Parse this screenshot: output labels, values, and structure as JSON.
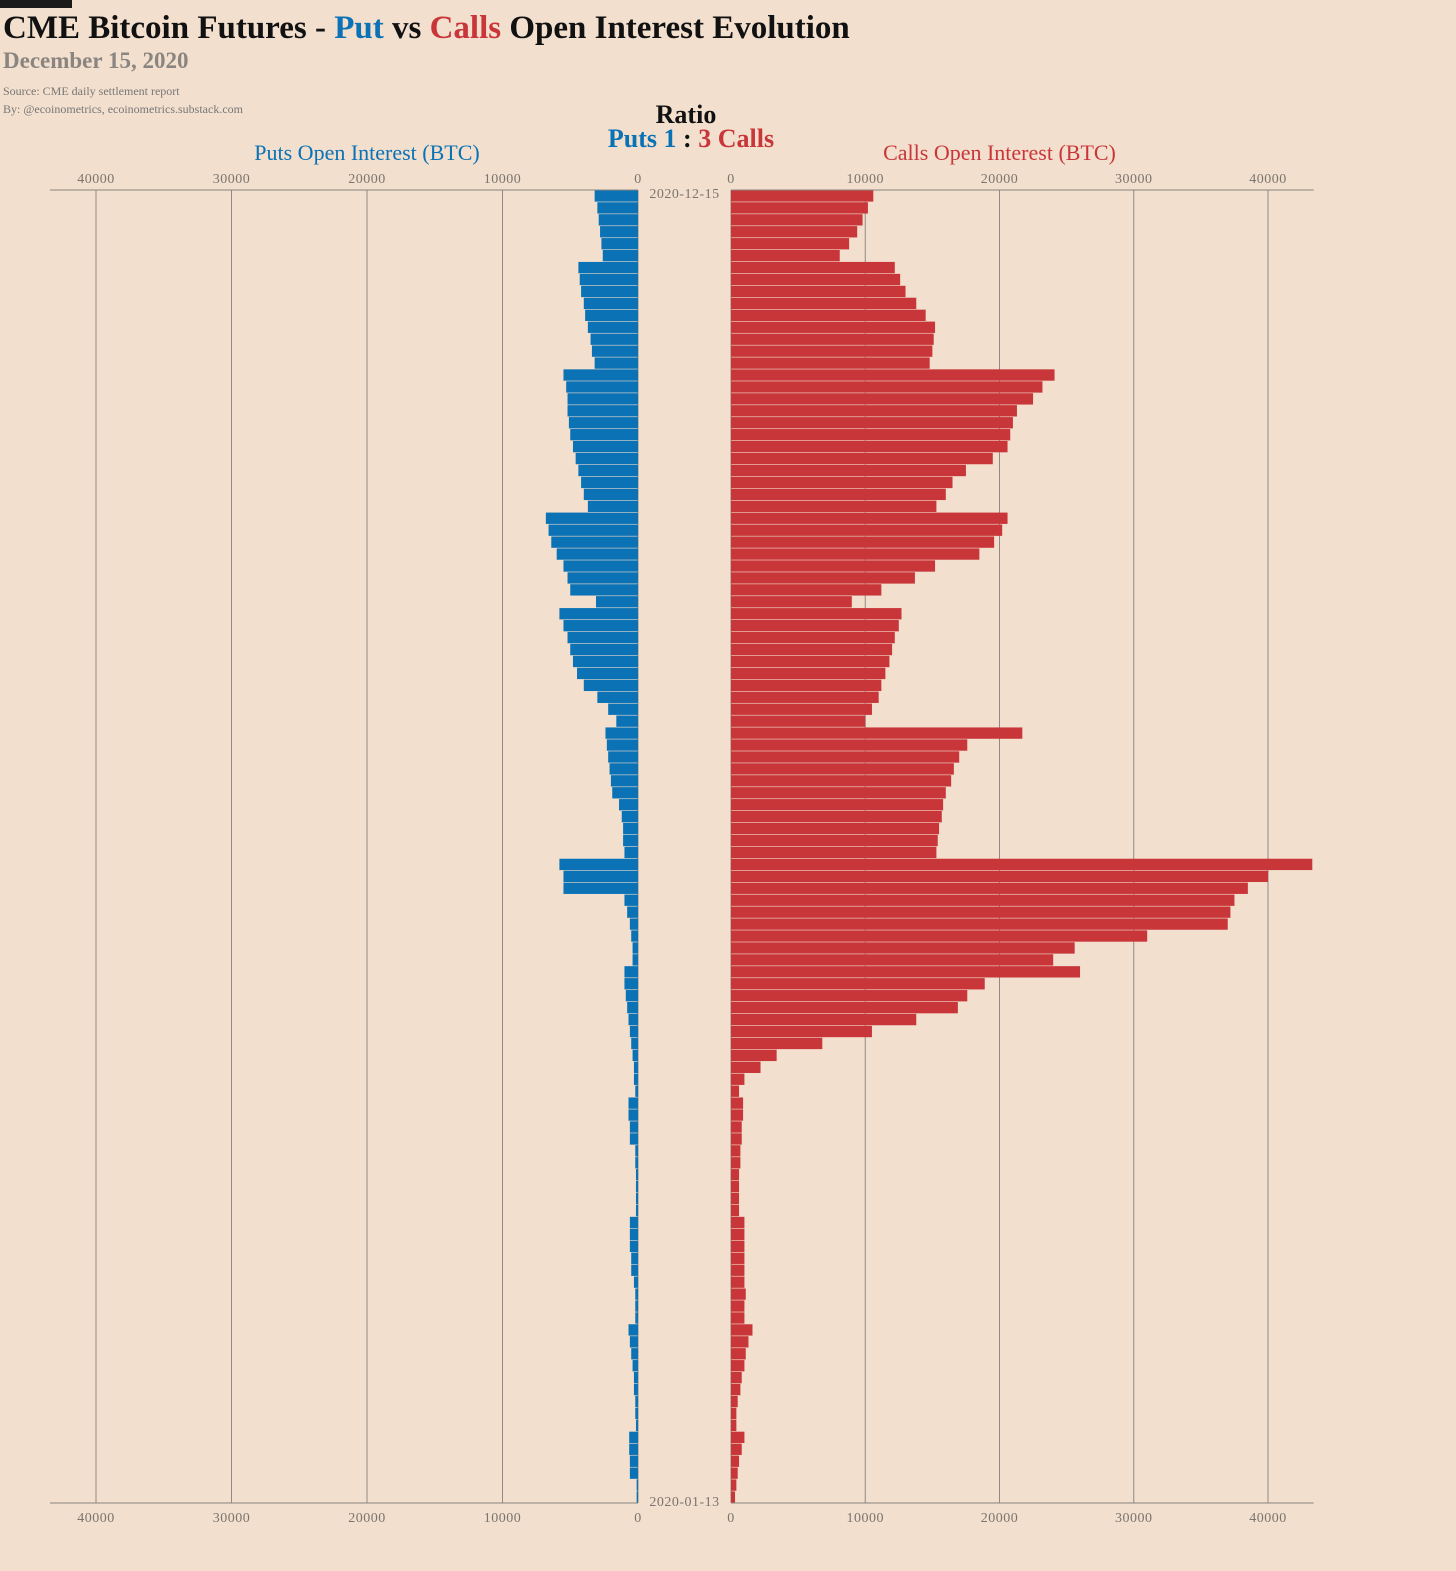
{
  "chart_data": {
    "type": "butterfly-bar",
    "title_parts": [
      {
        "text": "CME Bitcoin Futures -",
        "color": "#111111"
      },
      {
        "text": "Put",
        "color": "#0a72b5"
      },
      {
        "text": "vs",
        "color": "#111111"
      },
      {
        "text": "Calls",
        "color": "#c9363a"
      },
      {
        "text": "Open Interest Evolution",
        "color": "#111111"
      }
    ],
    "subtitle": "December 15, 2020",
    "source": "Source: CME daily settlement report",
    "byline": "By: @ecoinometrics, ecoinometrics.substack.com",
    "ratio_title": "Ratio",
    "ratio_parts": [
      {
        "text": "Puts 1",
        "color": "#0a72b5"
      },
      {
        "text": ":",
        "color": "#111111"
      },
      {
        "text": "3 Calls",
        "color": "#c9363a"
      }
    ],
    "categories": [
      "2020-12-15",
      null,
      null,
      null,
      null,
      null,
      null,
      null,
      null,
      null,
      null,
      null,
      null,
      null,
      null,
      null,
      null,
      null,
      null,
      null,
      null,
      null,
      null,
      null,
      null,
      null,
      null,
      null,
      null,
      null,
      null,
      null,
      null,
      null,
      null,
      null,
      null,
      null,
      null,
      null,
      null,
      null,
      null,
      null,
      null,
      null,
      null,
      null,
      null,
      null,
      null,
      null,
      null,
      null,
      null,
      null,
      null,
      null,
      null,
      null,
      null,
      null,
      null,
      null,
      null,
      null,
      null,
      null,
      null,
      null,
      null,
      null,
      null,
      null,
      null,
      null,
      null,
      null,
      null,
      null,
      null,
      null,
      null,
      null,
      null,
      null,
      null,
      null,
      null,
      null,
      null,
      null,
      null,
      null,
      null,
      null,
      null,
      null,
      null,
      null,
      null,
      null,
      null,
      null,
      null,
      null,
      null,
      null,
      null,
      "2020-01-13"
    ],
    "series": [
      {
        "name": "Puts Open Interest (BTC)",
        "color": "#0a72b5",
        "side": "left",
        "values": [
          3200,
          3000,
          2900,
          2800,
          2700,
          2600,
          4400,
          4300,
          4200,
          4000,
          3900,
          3700,
          3500,
          3400,
          3200,
          5500,
          5300,
          5200,
          5200,
          5100,
          5000,
          4800,
          4600,
          4400,
          4200,
          4000,
          3700,
          6800,
          6600,
          6400,
          6000,
          5500,
          5200,
          5000,
          3100,
          5800,
          5500,
          5200,
          5000,
          4800,
          4500,
          4000,
          3000,
          2200,
          1600,
          2400,
          2300,
          2200,
          2100,
          2000,
          1900,
          1400,
          1200,
          1100,
          1100,
          1000,
          5800,
          5500,
          5500,
          1000,
          800,
          600,
          500,
          400,
          400,
          1000,
          1000,
          900,
          800,
          700,
          600,
          500,
          400,
          300,
          300,
          200,
          700,
          700,
          600,
          600,
          200,
          200,
          150,
          150,
          150,
          150,
          600,
          600,
          600,
          500,
          500,
          300,
          200,
          200,
          200,
          700,
          600,
          500,
          400,
          300,
          300,
          200,
          200,
          150,
          650,
          650,
          600,
          600,
          100,
          100
        ]
      },
      {
        "name": "Calls Open Interest (BTC)",
        "color": "#c9363a",
        "side": "right",
        "values": [
          10600,
          10200,
          9800,
          9400,
          8800,
          8100,
          12200,
          12600,
          13000,
          13800,
          14500,
          15200,
          15100,
          15000,
          14800,
          24100,
          23200,
          22500,
          21300,
          21000,
          20800,
          20600,
          19500,
          17500,
          16500,
          16000,
          15300,
          20600,
          20200,
          19600,
          18500,
          15200,
          13700,
          11200,
          9000,
          12700,
          12500,
          12200,
          12000,
          11800,
          11500,
          11200,
          11000,
          10500,
          10000,
          21700,
          17600,
          17000,
          16600,
          16400,
          16000,
          15800,
          15700,
          15500,
          15400,
          15300,
          43300,
          40000,
          38500,
          37500,
          37200,
          37000,
          31000,
          25600,
          24000,
          26000,
          18900,
          17600,
          16900,
          13800,
          10500,
          6800,
          3400,
          2200,
          1000,
          600,
          900,
          900,
          800,
          800,
          700,
          700,
          600,
          600,
          600,
          600,
          1000,
          1000,
          1000,
          1000,
          1000,
          1000,
          1100,
          1000,
          1000,
          1600,
          1300,
          1100,
          1000,
          800,
          700,
          500,
          400,
          400,
          1000,
          800,
          600,
          500,
          400,
          300
        ]
      }
    ],
    "xlim": [
      0,
      43400
    ],
    "xticks": [
      0,
      10000,
      20000,
      30000,
      40000
    ],
    "grid": true
  }
}
